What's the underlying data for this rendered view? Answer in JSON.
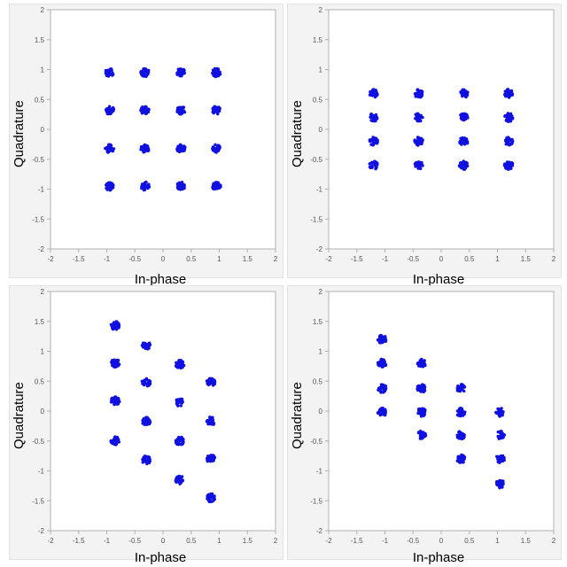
{
  "colors": {
    "points": "#1010e0",
    "plot_bg": "#ffffff",
    "frame_bg": "#f3f3f3",
    "axis": "#b0b0b0",
    "tick_text": "#555555"
  },
  "chart_data": [
    {
      "type": "scatter",
      "title": "",
      "xlabel": "In-phase",
      "ylabel": "Quadrature",
      "xlim": [
        -2,
        2
      ],
      "ylim": [
        -2,
        2
      ],
      "xticks": [
        "-2",
        "-1.5",
        "-1",
        "-0.5",
        "0",
        "0.5",
        "1",
        "1.5",
        "2"
      ],
      "yticks": [
        "2",
        "1.5",
        "1",
        "0.5",
        "0",
        "-0.5",
        "-1",
        "-1.5",
        "-2"
      ],
      "grid": false,
      "clusters": [
        [
          -0.95,
          0.95
        ],
        [
          -0.32,
          0.95
        ],
        [
          0.32,
          0.95
        ],
        [
          0.95,
          0.95
        ],
        [
          -0.95,
          0.32
        ],
        [
          -0.32,
          0.32
        ],
        [
          0.32,
          0.32
        ],
        [
          0.95,
          0.32
        ],
        [
          -0.95,
          -0.32
        ],
        [
          -0.32,
          -0.32
        ],
        [
          0.32,
          -0.32
        ],
        [
          0.95,
          -0.32
        ],
        [
          -0.95,
          -0.95
        ],
        [
          -0.32,
          -0.95
        ],
        [
          0.32,
          -0.95
        ],
        [
          0.95,
          -0.95
        ]
      ]
    },
    {
      "type": "scatter",
      "title": "",
      "xlabel": "In-phase",
      "ylabel": "Quadrature",
      "xlim": [
        -2,
        2
      ],
      "ylim": [
        -2,
        2
      ],
      "xticks": [
        "-2",
        "-1.5",
        "-1",
        "-0.5",
        "0",
        "0.5",
        "1",
        "1.5",
        "2"
      ],
      "yticks": [
        "2",
        "1.5",
        "1",
        "0.5",
        "0",
        "-0.5",
        "-1",
        "-1.5",
        "-2"
      ],
      "grid": false,
      "clusters": [
        [
          -1.2,
          0.6
        ],
        [
          -0.4,
          0.6
        ],
        [
          0.4,
          0.6
        ],
        [
          1.2,
          0.6
        ],
        [
          -1.2,
          0.2
        ],
        [
          -0.4,
          0.2
        ],
        [
          0.4,
          0.2
        ],
        [
          1.2,
          0.2
        ],
        [
          -1.2,
          -0.2
        ],
        [
          -0.4,
          -0.2
        ],
        [
          0.4,
          -0.2
        ],
        [
          1.2,
          -0.2
        ],
        [
          -1.2,
          -0.6
        ],
        [
          -0.4,
          -0.6
        ],
        [
          0.4,
          -0.6
        ],
        [
          1.2,
          -0.6
        ]
      ]
    },
    {
      "type": "scatter",
      "title": "",
      "xlabel": "In-phase",
      "ylabel": "Quadrature",
      "xlim": [
        -2,
        2
      ],
      "ylim": [
        -2,
        2
      ],
      "xticks": [
        "-2",
        "-1.5",
        "-1",
        "-0.5",
        "0",
        "0.5",
        "1",
        "1.5",
        "2"
      ],
      "yticks": [
        "2",
        "1.5",
        "1",
        "0.5",
        "0",
        "-0.5",
        "-1",
        "-1.5",
        "-2"
      ],
      "grid": false,
      "clusters": [
        [
          -0.85,
          1.43
        ],
        [
          -0.85,
          0.8
        ],
        [
          -0.85,
          0.17
        ],
        [
          -0.85,
          -0.5
        ],
        [
          -0.3,
          1.1
        ],
        [
          -0.3,
          0.48
        ],
        [
          -0.3,
          -0.17
        ],
        [
          -0.3,
          -0.82
        ],
        [
          0.3,
          0.78
        ],
        [
          0.3,
          0.15
        ],
        [
          0.3,
          -0.5
        ],
        [
          0.3,
          -1.15
        ],
        [
          0.85,
          0.48
        ],
        [
          0.85,
          -0.17
        ],
        [
          0.85,
          -0.8
        ],
        [
          0.85,
          -1.45
        ]
      ]
    },
    {
      "type": "scatter",
      "title": "",
      "xlabel": "In-phase",
      "ylabel": "Quadrature",
      "xlim": [
        -2,
        2
      ],
      "ylim": [
        -2,
        2
      ],
      "xticks": [
        "-2",
        "-1.5",
        "-1",
        "-0.5",
        "0",
        "0.5",
        "1",
        "1.5",
        "2"
      ],
      "yticks": [
        "2",
        "1.5",
        "1",
        "0.5",
        "0",
        "-0.5",
        "-1",
        "-1.5",
        "-2"
      ],
      "grid": false,
      "clusters": [
        [
          -1.05,
          1.2
        ],
        [
          -1.05,
          0.8
        ],
        [
          -1.05,
          0.38
        ],
        [
          -1.05,
          -0.02
        ],
        [
          -0.35,
          0.8
        ],
        [
          -0.35,
          0.38
        ],
        [
          -0.35,
          -0.02
        ],
        [
          -0.35,
          -0.4
        ],
        [
          0.35,
          0.38
        ],
        [
          0.35,
          -0.02
        ],
        [
          0.35,
          -0.4
        ],
        [
          0.35,
          -0.8
        ],
        [
          1.05,
          -0.02
        ],
        [
          1.05,
          -0.4
        ],
        [
          1.05,
          -0.8
        ],
        [
          1.05,
          -1.22
        ]
      ]
    }
  ]
}
